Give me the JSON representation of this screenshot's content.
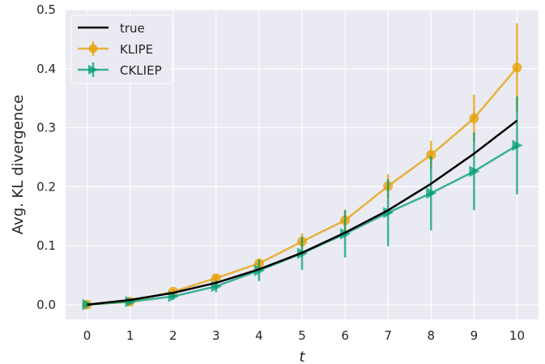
{
  "chart_data": {
    "type": "line",
    "xlabel": "t",
    "ylabel": "Avg. KL divergence",
    "xlim": [
      -0.5,
      10.5
    ],
    "ylim": [
      -0.025,
      0.5
    ],
    "xticks": [
      "0",
      "1",
      "2",
      "3",
      "4",
      "5",
      "6",
      "7",
      "8",
      "9",
      "10"
    ],
    "yticks": [
      "0.0",
      "0.1",
      "0.2",
      "0.3",
      "0.4",
      "0.5"
    ],
    "grid": true,
    "legend_position": "top-left",
    "x": [
      0,
      1,
      2,
      3,
      4,
      5,
      6,
      7,
      8,
      9,
      10
    ],
    "series": [
      {
        "name": "true",
        "color": "#000000",
        "marker": "none",
        "values": [
          0.0,
          0.008,
          0.02,
          0.037,
          0.06,
          0.088,
          0.122,
          0.16,
          0.205,
          0.256,
          0.312
        ]
      },
      {
        "name": "KLIPE",
        "color": "#e69f00",
        "marker": "circle",
        "values": [
          0.0,
          0.005,
          0.022,
          0.045,
          0.07,
          0.107,
          0.143,
          0.201,
          0.254,
          0.316,
          0.402
        ],
        "errors": [
          0.003,
          0.004,
          0.005,
          0.006,
          0.008,
          0.014,
          0.018,
          0.02,
          0.024,
          0.04,
          0.075
        ]
      },
      {
        "name": "CKLIEP",
        "color": "#009e73",
        "marker": "triangle-right",
        "values": [
          0.0,
          0.005,
          0.014,
          0.031,
          0.058,
          0.087,
          0.12,
          0.156,
          0.189,
          0.226,
          0.27
        ],
        "errors": [
          0.003,
          0.004,
          0.006,
          0.01,
          0.018,
          0.028,
          0.04,
          0.057,
          0.063,
          0.066,
          0.083
        ]
      }
    ]
  }
}
